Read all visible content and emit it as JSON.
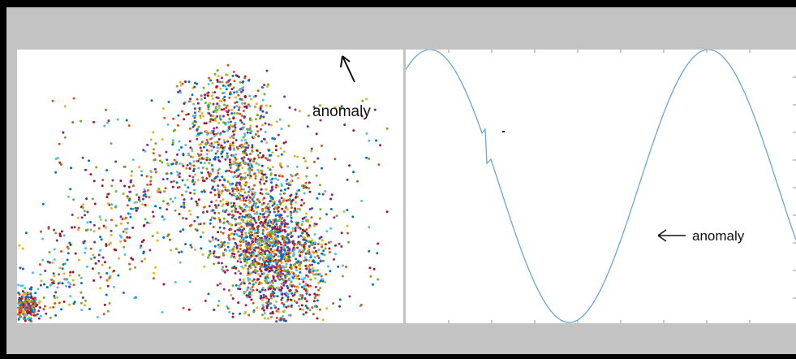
{
  "chart_data": [
    {
      "type": "scatter",
      "title": "",
      "xlabel": "",
      "ylabel": "",
      "grid": false,
      "legend": "none",
      "annotations": [
        {
          "text": "anomaly",
          "arrow": "up-left"
        }
      ],
      "colors": [
        "#0072bd",
        "#d95319",
        "#edb120",
        "#7e2f8e",
        "#77ac30",
        "#4dbeee",
        "#a2142f"
      ]
    },
    {
      "type": "line",
      "title": "",
      "xlabel": "",
      "ylabel": "",
      "grid": false,
      "legend": "none",
      "series": [
        {
          "color": "#6aa6d4",
          "shape": "sine wave with a small spike near the first descending slope"
        }
      ],
      "annotations": [
        {
          "text": "anomaly",
          "arrow": "left"
        }
      ]
    }
  ]
}
